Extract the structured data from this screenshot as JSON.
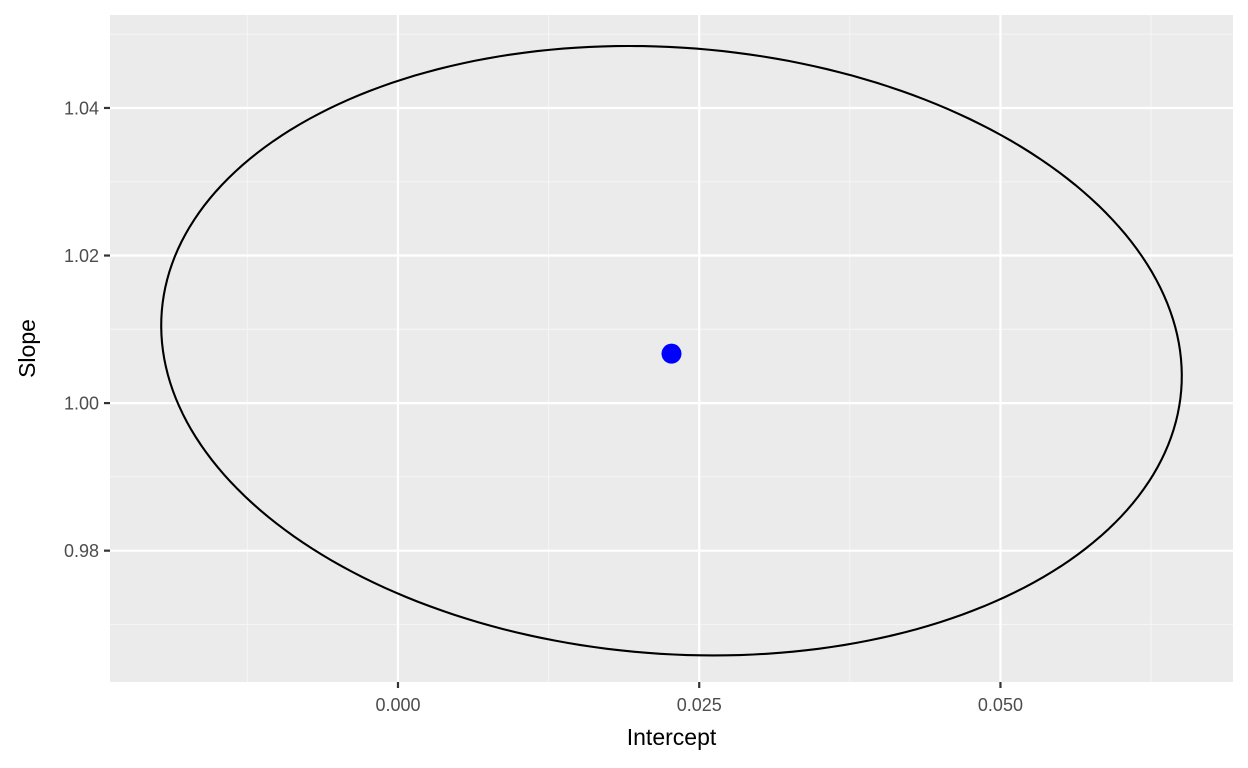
{
  "chart_data": {
    "type": "scatter",
    "title": "",
    "xlabel": "Intercept",
    "ylabel": "Slope",
    "xlim": [
      -0.0239,
      0.0693
    ],
    "ylim": [
      0.9622,
      1.0526
    ],
    "x_major_ticks": [
      0.0,
      0.025,
      0.05
    ],
    "x_minor_ticks": [
      -0.0125,
      0.0125,
      0.0375,
      0.0625
    ],
    "x_tick_labels": [
      "0.000",
      "0.025",
      "0.050"
    ],
    "y_major_ticks": [
      0.98,
      1.0,
      1.02,
      1.04
    ],
    "y_minor_ticks": [
      0.97,
      0.99,
      1.01,
      1.03,
      1.05
    ],
    "y_tick_labels": [
      "0.98",
      "1.00",
      "1.02",
      "1.04"
    ],
    "grid": true,
    "point": {
      "x": 0.0227,
      "y": 1.0067
    },
    "ellipse": {
      "center": {
        "x": 0.0227,
        "y": 1.0071
      },
      "x_extent": [
        -0.0197,
        0.065
      ],
      "y_extent": [
        0.9658,
        1.0484
      ],
      "x_at_y_max": 0.0192,
      "x_at_y_min": 0.0262
    }
  },
  "colors": {
    "panel_background": "#EBEBEB",
    "grid_major": "#FFFFFF",
    "grid_minor": "#F5F5F5",
    "point": "#0000FF",
    "ellipse": "#000000",
    "tick_text": "#4D4D4D",
    "tick_mark": "#333333",
    "axis_title": "#000000"
  }
}
